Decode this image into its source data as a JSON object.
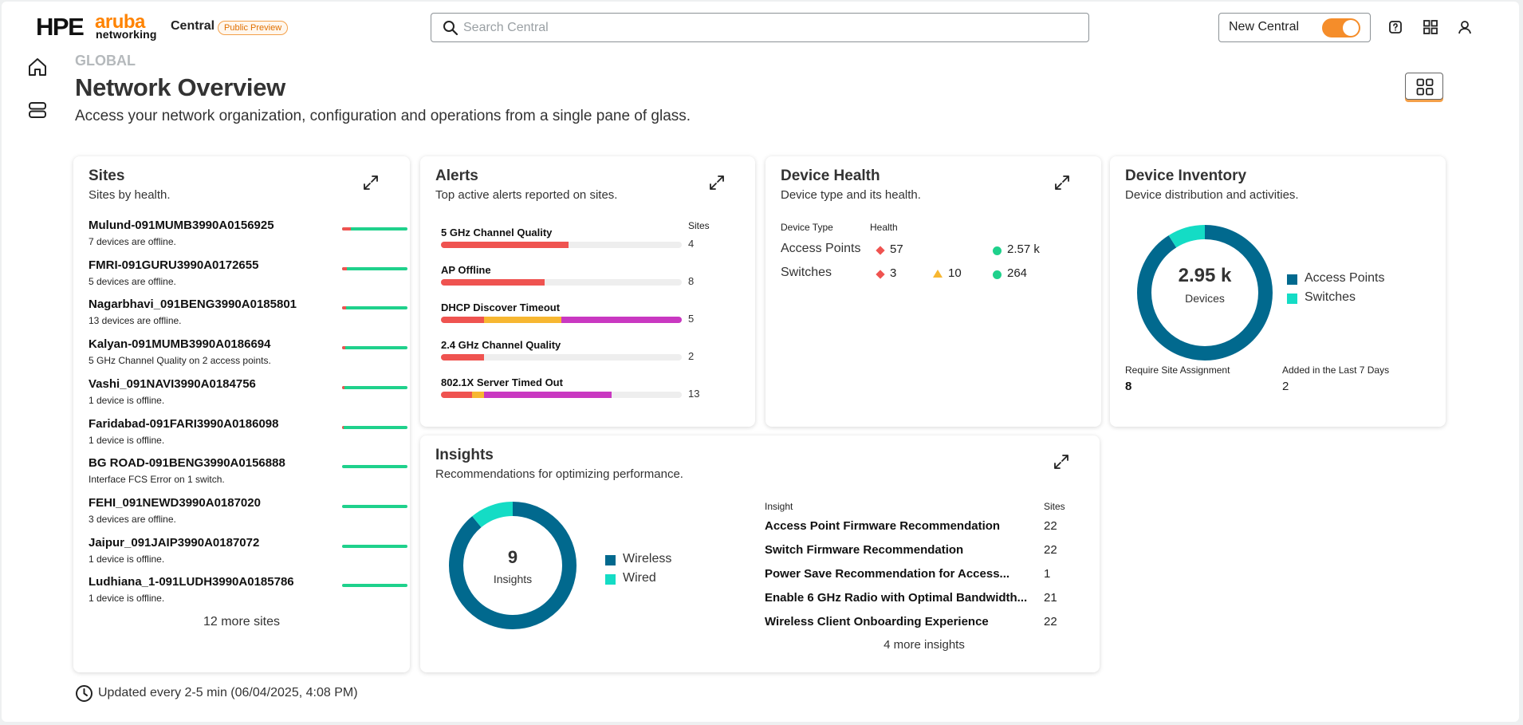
{
  "brand": {
    "hpe": "HPE",
    "aruba": "aruba",
    "networking": "networking",
    "product": "Central",
    "badge": "Public Preview"
  },
  "search": {
    "placeholder": "Search Central"
  },
  "toggle": {
    "label": "New Central",
    "on": true
  },
  "header": {
    "eyebrow": "GLOBAL",
    "title": "Network Overview",
    "subtitle": "Access your network organization, configuration and operations from a single pane of glass."
  },
  "sites": {
    "title": "Sites",
    "subtitle": "Sites by health.",
    "items": [
      {
        "name": "Mulund-091MUMB3990A0156925",
        "desc": "7 devices are offline.",
        "unhealthy": 0.14
      },
      {
        "name": "FMRI-091GURU3990A0172655",
        "desc": "5 devices are offline.",
        "unhealthy": 0.07
      },
      {
        "name": "Nagarbhavi_091BENG3990A0185801",
        "desc": "13 devices are offline.",
        "unhealthy": 0.06
      },
      {
        "name": "Kalyan-091MUMB3990A0186694",
        "desc": "5 GHz Channel Quality on 2 access points.",
        "unhealthy": 0.05
      },
      {
        "name": "Vashi_091NAVI3990A0184756",
        "desc": "1 device is offline.",
        "unhealthy": 0.04
      },
      {
        "name": "Faridabad-091FARI3990A0186098",
        "desc": "1 device is offline.",
        "unhealthy": 0.03
      },
      {
        "name": "BG ROAD-091BENG3990A0156888",
        "desc": "Interface FCS Error on 1 switch.",
        "unhealthy": 0
      },
      {
        "name": "FEHI_091NEWD3990A0187020",
        "desc": "3 devices are offline.",
        "unhealthy": 0
      },
      {
        "name": "Jaipur_091JAIP3990A0187072",
        "desc": "1 device is offline.",
        "unhealthy": 0
      },
      {
        "name": "Ludhiana_1-091LUDH3990A0185786",
        "desc": "1 device is offline.",
        "unhealthy": 0
      }
    ],
    "more": "12 more sites"
  },
  "alerts": {
    "title": "Alerts",
    "subtitle": "Top active alerts reported on sites.",
    "sites_header": "Sites",
    "colors": {
      "critical": "#ef5350",
      "major": "#f7b731",
      "minor": "#c938c1"
    },
    "items": [
      {
        "name": "5 GHz Channel Quality",
        "count": "4",
        "segments": [
          {
            "sev": "critical",
            "value": 0.53
          }
        ]
      },
      {
        "name": "AP Offline",
        "count": "8",
        "segments": [
          {
            "sev": "critical",
            "value": 0.43
          }
        ]
      },
      {
        "name": "DHCP Discover Timeout",
        "count": "5",
        "segments": [
          {
            "sev": "critical",
            "value": 0.18
          },
          {
            "sev": "major",
            "value": 0.32
          },
          {
            "sev": "minor",
            "value": 0.5
          }
        ]
      },
      {
        "name": "2.4 GHz Channel Quality",
        "count": "2",
        "segments": [
          {
            "sev": "critical",
            "value": 0.18
          }
        ]
      },
      {
        "name": "802.1X Server Timed Out",
        "count": "13",
        "segments": [
          {
            "sev": "critical",
            "value": 0.13
          },
          {
            "sev": "major",
            "value": 0.05
          },
          {
            "sev": "minor",
            "value": 0.53
          }
        ]
      }
    ]
  },
  "device_health": {
    "title": "Device Health",
    "subtitle": "Device type and its health.",
    "col_type": "Device Type",
    "col_health": "Health",
    "rows": [
      {
        "type": "Access Points",
        "critical": "57",
        "warning": "",
        "healthy": "2.57 k"
      },
      {
        "type": "Switches",
        "critical": "3",
        "warning": "10",
        "healthy": "264"
      }
    ]
  },
  "device_inventory": {
    "title": "Device Inventory",
    "subtitle": "Device distribution and activities.",
    "total": "2.95 k",
    "total_label": "Devices",
    "legend": [
      {
        "name": "Access Points",
        "color": "#01698e",
        "share": 0.91
      },
      {
        "name": "Switches",
        "color": "#14dcc5",
        "share": 0.09
      }
    ],
    "stats": [
      {
        "label": "Require Site Assignment",
        "value": "8"
      },
      {
        "label": "Added in the Last 7 Days",
        "value": "2"
      }
    ]
  },
  "insights": {
    "title": "Insights",
    "subtitle": "Recommendations for optimizing performance.",
    "total": "9",
    "total_label": "Insights",
    "legend": [
      {
        "name": "Wireless",
        "color": "#01698e",
        "share": 0.89
      },
      {
        "name": "Wired",
        "color": "#14dcc5",
        "share": 0.11
      }
    ],
    "col_insight": "Insight",
    "col_sites": "Sites",
    "items": [
      {
        "name": "Access Point Firmware Recommendation",
        "sites": "22"
      },
      {
        "name": "Switch Firmware Recommendation",
        "sites": "22"
      },
      {
        "name": "Power Save Recommendation for Access...",
        "sites": "1"
      },
      {
        "name": "Enable 6 GHz Radio with Optimal Bandwidth...",
        "sites": "21"
      },
      {
        "name": "Wireless Client Onboarding Experience",
        "sites": "22"
      }
    ],
    "more": "4 more insights"
  },
  "footer": {
    "updated": "Updated every 2-5 min (06/04/2025, 4:08 PM)"
  }
}
